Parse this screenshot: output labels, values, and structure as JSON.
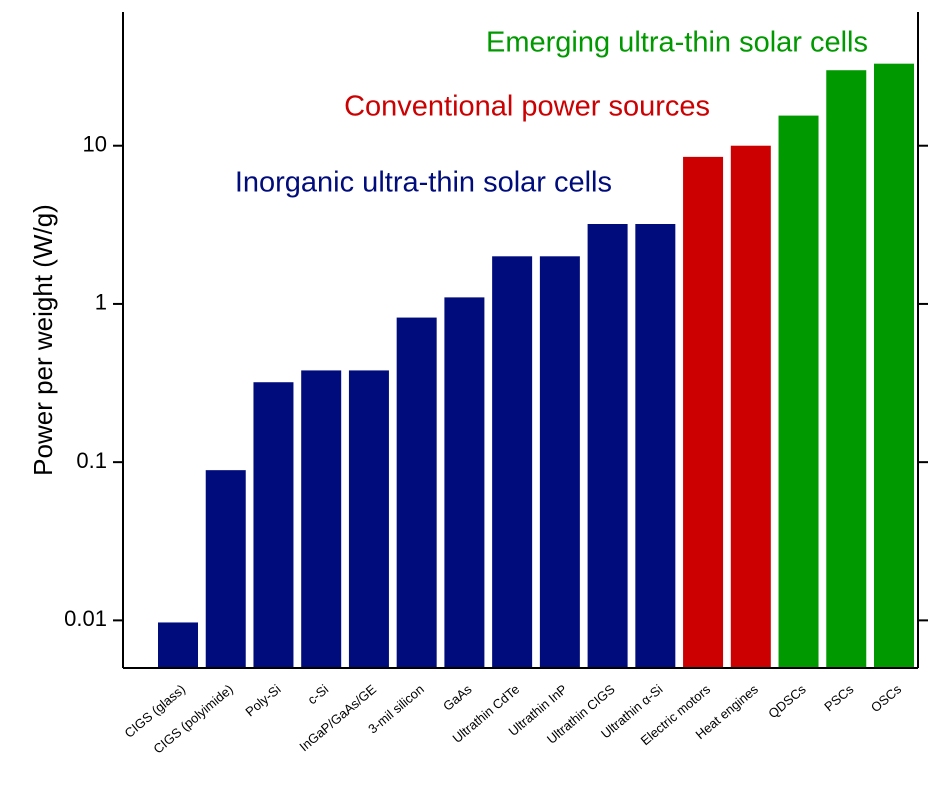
{
  "chart_data": {
    "type": "bar",
    "y_label": "Power per weight (W/g)",
    "categories": [
      "CIGS (glass)",
      "CIGS (polyimide)",
      "Poly-Si",
      "c-Si",
      "InGaP/GaAs/GE",
      "3-mil silicon",
      "GaAs",
      "Ultrathin CdTe",
      "Ultrathin InP",
      "Ultrathin CIGS",
      "Ultrathin α-Si",
      "Electric motors",
      "Heat engines",
      "QDSCs",
      "PSCs",
      "OSCs"
    ],
    "values": [
      0.0097,
      0.089,
      0.32,
      0.38,
      0.38,
      0.82,
      1.1,
      2.0,
      2.0,
      3.2,
      3.2,
      8.5,
      10,
      15.5,
      30,
      33
    ],
    "colors": [
      "#000c7c",
      "#000c7c",
      "#000c7c",
      "#000c7c",
      "#000c7c",
      "#000c7c",
      "#000c7c",
      "#000c7c",
      "#000c7c",
      "#000c7c",
      "#000c7c",
      "#cc0000",
      "#cc0000",
      "#009900",
      "#009900",
      "#009900"
    ],
    "annotations": [
      {
        "text": "Emerging ultra-thin solar cells",
        "color": "#009900"
      },
      {
        "text": "Conventional power  sources",
        "color": "#cc0000"
      },
      {
        "text": "Inorganic ultra-thin solar cells",
        "color": "#000c7c"
      }
    ],
    "log_scale": true,
    "ylim": [
      0.005,
      70
    ],
    "yticks": [
      0.01,
      0.1,
      1,
      10
    ]
  }
}
